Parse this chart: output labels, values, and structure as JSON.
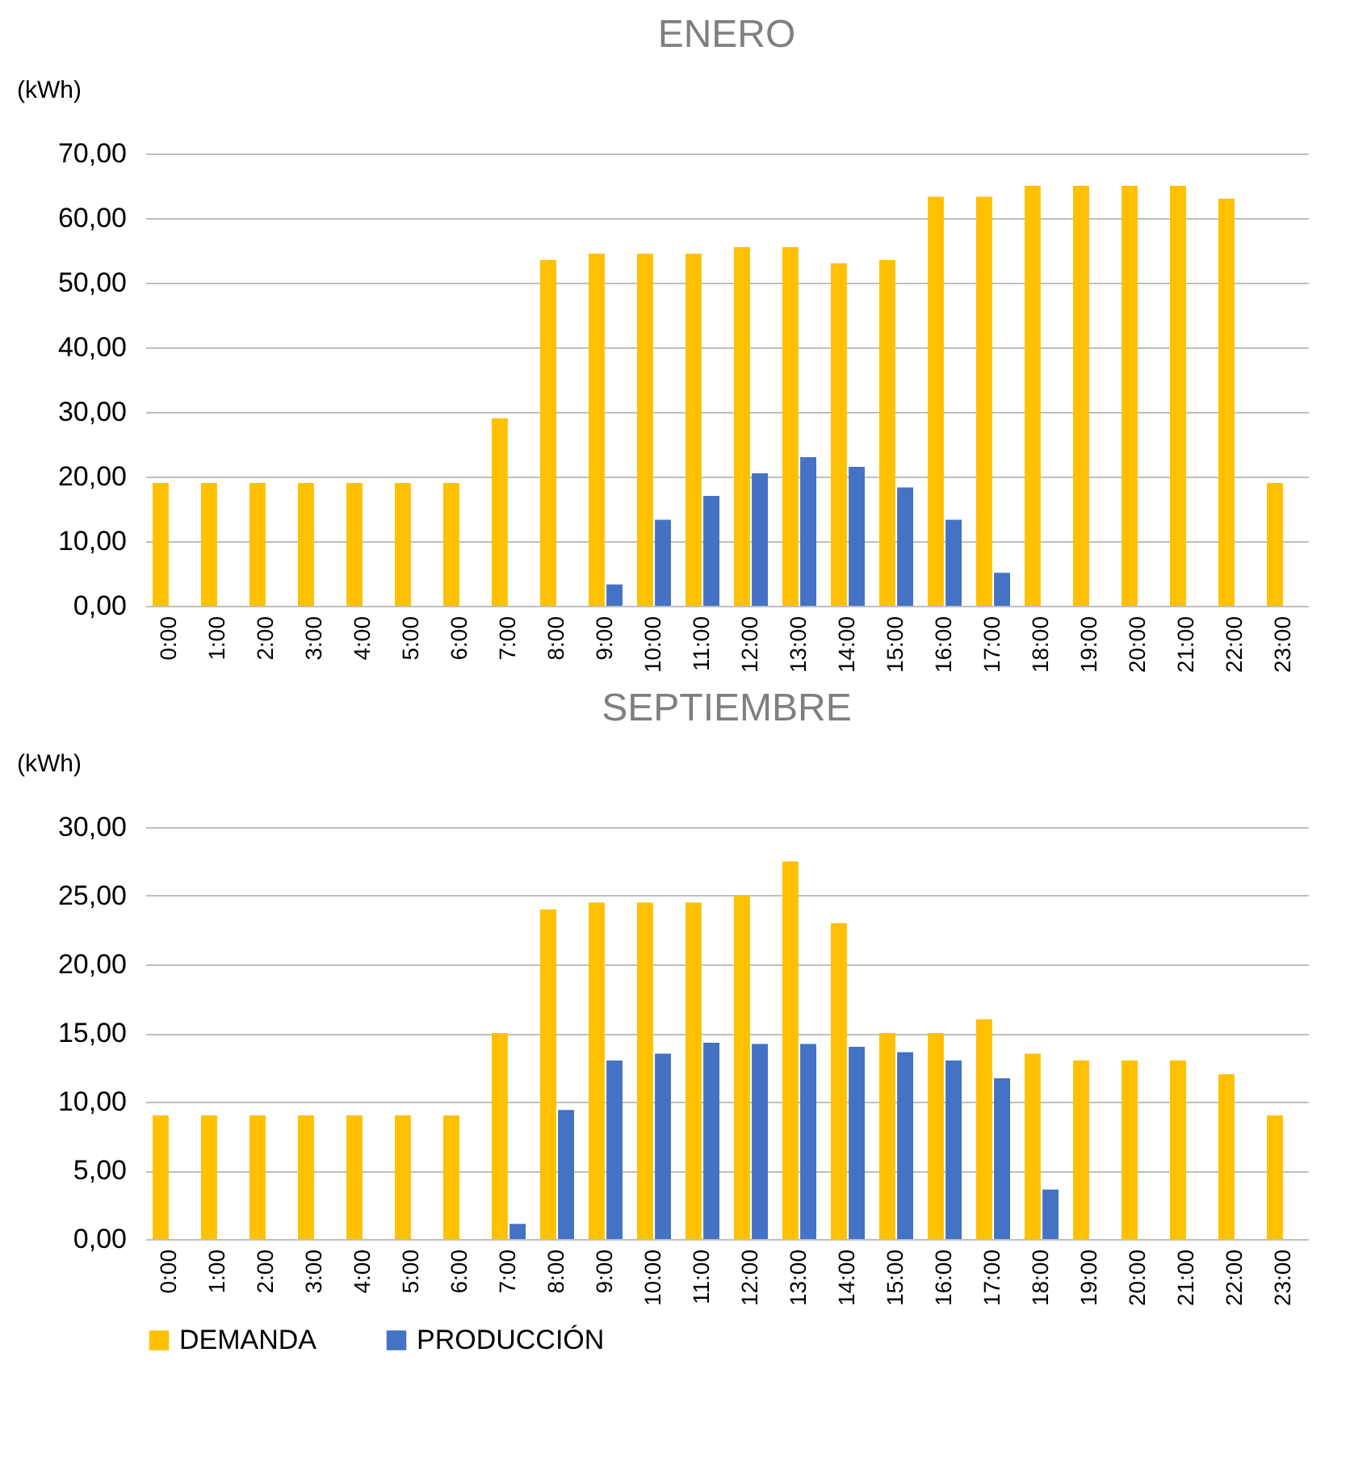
{
  "chart_data": [
    {
      "type": "bar",
      "title": "ENERO",
      "ylabel": "(kWh)",
      "categories": [
        "0:00",
        "1:00",
        "2:00",
        "3:00",
        "4:00",
        "5:00",
        "6:00",
        "7:00",
        "8:00",
        "9:00",
        "10:00",
        "11:00",
        "12:00",
        "13:00",
        "14:00",
        "15:00",
        "16:00",
        "17:00",
        "18:00",
        "19:00",
        "20:00",
        "21:00",
        "22:00",
        "23:00"
      ],
      "series": [
        {
          "name": "DEMANDA",
          "color": "#ffc000",
          "values": [
            19,
            19,
            19,
            19,
            19,
            19,
            19,
            29,
            53.5,
            54.5,
            54.5,
            54.5,
            55.5,
            55.5,
            53,
            53.5,
            63.3,
            63.3,
            65,
            65,
            65,
            65,
            63,
            19
          ]
        },
        {
          "name": "PRODUCCIÓN",
          "color": "#4472c4",
          "values": [
            null,
            null,
            null,
            null,
            null,
            null,
            null,
            null,
            null,
            3.3,
            13.3,
            17,
            20.5,
            23,
            21.5,
            18.3,
            13.3,
            5.1,
            null,
            null,
            null,
            null,
            null,
            null
          ]
        }
      ],
      "ylim": [
        0,
        70
      ],
      "yticks": [
        {
          "value": 0,
          "label": "0,00"
        },
        {
          "value": 10,
          "label": "10,00"
        },
        {
          "value": 20,
          "label": "20,00"
        },
        {
          "value": 30,
          "label": "30,00"
        },
        {
          "value": 40,
          "label": "40,00"
        },
        {
          "value": 50,
          "label": "50,00"
        },
        {
          "value": 60,
          "label": "60,00"
        },
        {
          "value": 70,
          "label": "70,00"
        }
      ],
      "grid": "y",
      "legend": "bottom"
    },
    {
      "type": "bar",
      "title": "SEPTIEMBRE",
      "ylabel": "(kWh)",
      "categories": [
        "0:00",
        "1:00",
        "2:00",
        "3:00",
        "4:00",
        "5:00",
        "6:00",
        "7:00",
        "8:00",
        "9:00",
        "10:00",
        "11:00",
        "12:00",
        "13:00",
        "14:00",
        "15:00",
        "16:00",
        "17:00",
        "18:00",
        "19:00",
        "20:00",
        "21:00",
        "22:00",
        "23:00"
      ],
      "series": [
        {
          "name": "DEMANDA",
          "color": "#ffc000",
          "values": [
            9,
            9,
            9,
            9,
            9,
            9,
            9,
            15,
            24,
            24.5,
            24.5,
            24.5,
            25,
            27.5,
            23,
            15,
            15,
            16,
            13.5,
            13,
            13,
            13,
            12,
            9
          ]
        },
        {
          "name": "PRODUCCIÓN",
          "color": "#4472c4",
          "values": [
            null,
            null,
            null,
            null,
            null,
            null,
            null,
            1.1,
            9.4,
            13,
            13.5,
            14.3,
            14.2,
            14.2,
            14,
            13.6,
            13,
            11.7,
            3.6,
            null,
            null,
            null,
            null,
            null
          ]
        }
      ],
      "ylim": [
        0,
        30
      ],
      "yticks": [
        {
          "value": 0,
          "label": "0,00"
        },
        {
          "value": 5,
          "label": "5,00"
        },
        {
          "value": 10,
          "label": "10,00"
        },
        {
          "value": 15,
          "label": "15,00"
        },
        {
          "value": 20,
          "label": "20,00"
        },
        {
          "value": 25,
          "label": "25,00"
        },
        {
          "value": 30,
          "label": "30,00"
        }
      ],
      "grid": "y",
      "legend": "bottom"
    }
  ]
}
